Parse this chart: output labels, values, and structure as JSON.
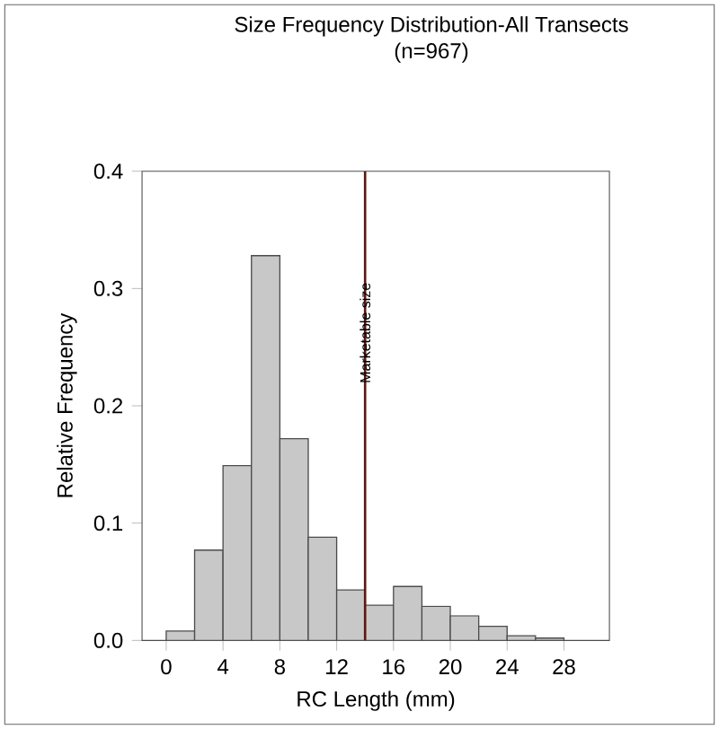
{
  "chart_data": {
    "type": "histogram",
    "title": "Size Frequency Distribution-All Transects",
    "subtitle": "(n=967)",
    "xlabel": "RC Length (mm)",
    "ylabel": "Relative Frequency",
    "bins": [
      0,
      2,
      4,
      6,
      8,
      10,
      12,
      14,
      16,
      18,
      20,
      22,
      24,
      26,
      28
    ],
    "values": [
      0.008,
      0.077,
      0.149,
      0.328,
      0.172,
      0.088,
      0.043,
      0.03,
      0.046,
      0.029,
      0.021,
      0.012,
      0.004,
      0.002
    ],
    "color": "#c8c8c8",
    "xlim": [
      -1.7,
      31.2
    ],
    "ylim": [
      0,
      0.4
    ],
    "xticks": [
      0,
      4,
      8,
      12,
      16,
      20,
      24,
      28
    ],
    "yticks": [
      {
        "value": 0,
        "label": "0.0"
      },
      0.1,
      0.2,
      0.3,
      0.4
    ],
    "ref_lines": [
      {
        "axis": "x",
        "value": 14,
        "label": "Marketable size",
        "color": "#5a1a14"
      }
    ],
    "grid": false
  }
}
